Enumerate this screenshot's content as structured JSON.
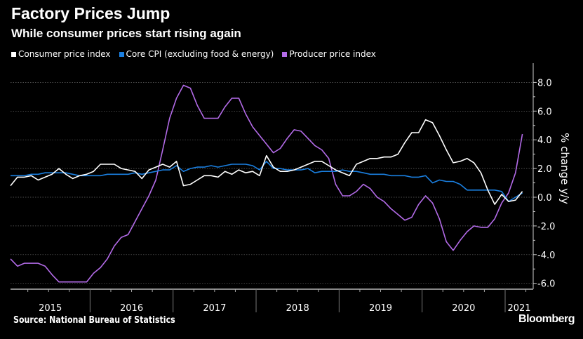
{
  "header": {
    "title": "Factory Prices Jump",
    "subtitle": "While consumer prices start rising again"
  },
  "footer": {
    "source": "Source: National Bureau of Statistics",
    "brand": "Bloomberg"
  },
  "colors": {
    "background": "#000000",
    "cpi": "#ffffff",
    "core": "#1a7fe0",
    "ppi": "#b36be8"
  },
  "chart_data": {
    "type": "line",
    "title": "Factory Prices Jump",
    "subtitle": "While consumer prices start rising again",
    "ylabel": "% change y/y",
    "xlabel": "",
    "ylim": [
      -6.5,
      9.2
    ],
    "y_ticks": [
      "8.0",
      "6.0",
      "4.0",
      "2.0",
      "0.0",
      "-2.0",
      "-4.0",
      "-6.0"
    ],
    "y_tick_values": [
      8,
      6,
      4,
      2,
      0,
      -2,
      -4,
      -6
    ],
    "x_tick_labels": [
      "2015",
      "2016",
      "2017",
      "2018",
      "2019",
      "2020",
      "2021"
    ],
    "x_start": "2015-01",
    "x_end": "2021-03",
    "x_frequency": "monthly",
    "y_axis_side": "right",
    "grid": "horizontal dotted",
    "legend_placement": "top-left",
    "series": [
      {
        "name": "Consumer price index",
        "color": "#ffffff",
        "values": [
          0.8,
          1.4,
          1.4,
          1.5,
          1.2,
          1.4,
          1.6,
          2.0,
          1.6,
          1.3,
          1.5,
          1.6,
          1.8,
          2.3,
          2.3,
          2.3,
          2.0,
          1.9,
          1.8,
          1.3,
          1.9,
          2.1,
          2.3,
          2.1,
          2.5,
          0.8,
          0.9,
          1.2,
          1.5,
          1.5,
          1.4,
          1.8,
          1.6,
          1.9,
          1.7,
          1.8,
          1.5,
          2.9,
          2.1,
          1.8,
          1.8,
          1.9,
          2.1,
          2.3,
          2.5,
          2.5,
          2.2,
          1.9,
          1.7,
          1.5,
          2.3,
          2.5,
          2.7,
          2.7,
          2.8,
          2.8,
          3.0,
          3.8,
          4.5,
          4.5,
          5.4,
          5.2,
          4.3,
          3.3,
          2.4,
          2.5,
          2.7,
          2.4,
          1.7,
          0.5,
          -0.5,
          0.2,
          -0.3,
          -0.2,
          0.4
        ]
      },
      {
        "name": "Core CPI (excluding food & energy)",
        "color": "#1a7fe0",
        "values": [
          1.5,
          1.5,
          1.5,
          1.6,
          1.6,
          1.7,
          1.7,
          1.7,
          1.7,
          1.6,
          1.5,
          1.5,
          1.5,
          1.5,
          1.6,
          1.6,
          1.6,
          1.6,
          1.7,
          1.6,
          1.7,
          1.8,
          1.9,
          1.9,
          2.2,
          1.8,
          2.0,
          2.1,
          2.1,
          2.2,
          2.1,
          2.2,
          2.3,
          2.3,
          2.3,
          2.2,
          1.9,
          2.5,
          2.0,
          2.0,
          1.9,
          1.9,
          1.9,
          2.0,
          1.7,
          1.8,
          1.8,
          1.8,
          1.9,
          1.8,
          1.8,
          1.7,
          1.6,
          1.6,
          1.6,
          1.5,
          1.5,
          1.5,
          1.4,
          1.4,
          1.5,
          1.0,
          1.2,
          1.1,
          1.1,
          0.9,
          0.5,
          0.5,
          0.5,
          0.5,
          0.5,
          0.4,
          -0.3,
          0.0,
          0.3
        ]
      },
      {
        "name": "Producer price index",
        "color": "#b36be8",
        "values": [
          -4.3,
          -4.8,
          -4.6,
          -4.6,
          -4.6,
          -4.8,
          -5.4,
          -5.9,
          -5.9,
          -5.9,
          -5.9,
          -5.9,
          -5.3,
          -4.9,
          -4.3,
          -3.4,
          -2.8,
          -2.6,
          -1.7,
          -0.8,
          0.1,
          1.2,
          3.3,
          5.5,
          6.9,
          7.8,
          7.6,
          6.4,
          5.5,
          5.5,
          5.5,
          6.3,
          6.9,
          6.9,
          5.8,
          4.9,
          4.3,
          3.7,
          3.1,
          3.4,
          4.1,
          4.7,
          4.6,
          4.1,
          3.6,
          3.3,
          2.7,
          0.9,
          0.1,
          0.1,
          0.4,
          0.9,
          0.6,
          0.0,
          -0.3,
          -0.8,
          -1.2,
          -1.6,
          -1.4,
          -0.5,
          0.1,
          -0.4,
          -1.5,
          -3.1,
          -3.7,
          -3.0,
          -2.4,
          -2.0,
          -2.1,
          -2.1,
          -1.5,
          -0.4,
          0.3,
          1.7,
          4.4
        ]
      }
    ]
  }
}
